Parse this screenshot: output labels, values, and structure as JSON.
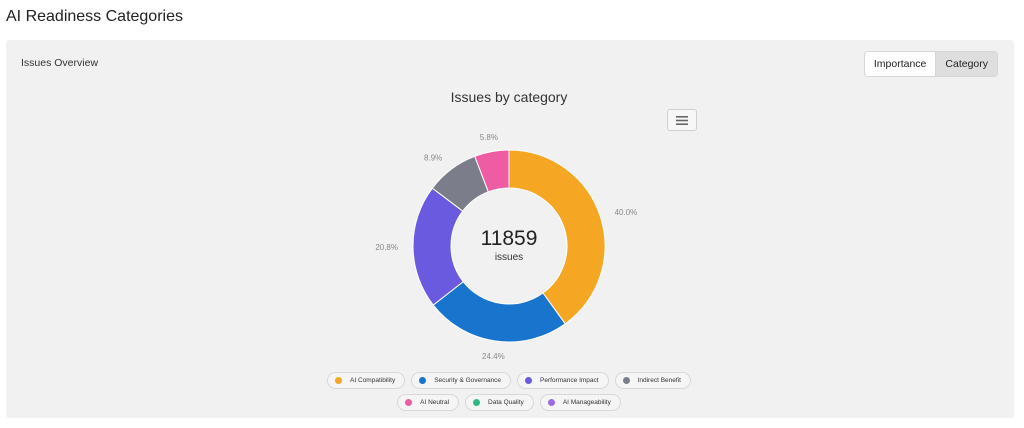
{
  "page": {
    "title": "AI Readiness Categories"
  },
  "panel": {
    "title": "Issues Overview",
    "toggle": {
      "options": [
        "Importance",
        "Category"
      ],
      "selected": "Category"
    }
  },
  "chart_data": {
    "type": "pie",
    "title": "Issues by category",
    "center_value": "11859",
    "center_label": "issues",
    "categories": [
      "AI Compatibility",
      "Security & Governance",
      "Performance Impact",
      "Indirect Benefit",
      "AI Neutral",
      "Data Quality",
      "AI Manageability"
    ],
    "values": [
      40.0,
      24.4,
      20.8,
      8.9,
      5.8,
      0,
      0
    ],
    "value_labels": [
      "40.0%",
      "24.4%",
      "20.8%",
      "8.9%",
      "5.8%",
      "",
      ""
    ],
    "colors": [
      "#f5a623",
      "#1874cd",
      "#6a5ae0",
      "#7b7d8a",
      "#ee5da3",
      "#2eb886",
      "#9b6ce6"
    ],
    "legend_placement": "bottom-center"
  }
}
